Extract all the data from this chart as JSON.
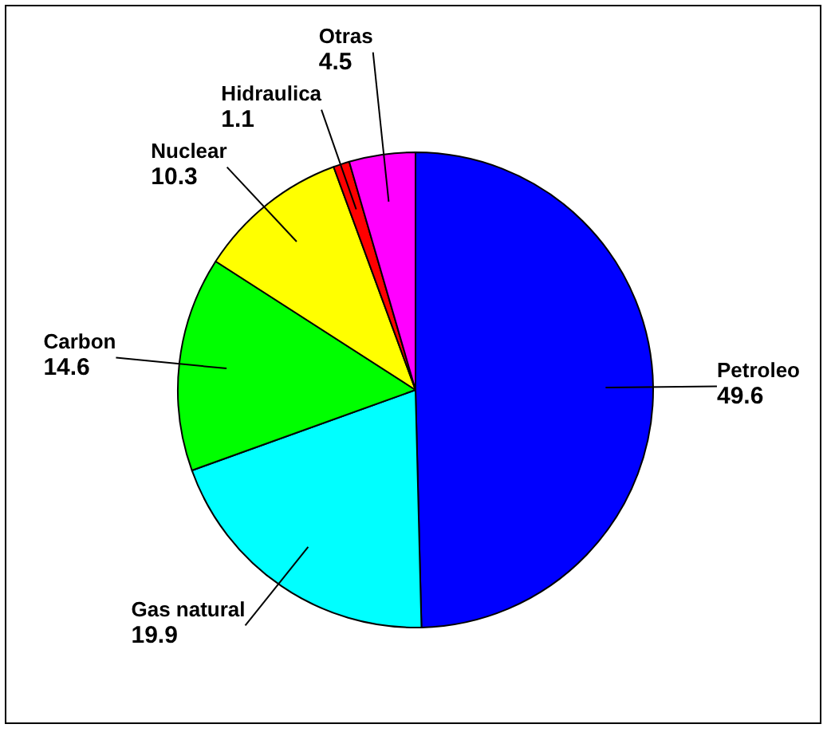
{
  "chart_data": {
    "type": "pie",
    "categories": [
      "Petroleo",
      "Gas natural",
      "Carbon",
      "Nuclear",
      "Hidraulica",
      "Otras"
    ],
    "values": [
      49.6,
      19.9,
      14.6,
      10.3,
      1.1,
      4.5
    ],
    "colors": [
      "#0000ff",
      "#00ffff",
      "#00ff00",
      "#ffff00",
      "#ff0000",
      "#ff00ff"
    ],
    "data_labels": true,
    "legend": false
  }
}
